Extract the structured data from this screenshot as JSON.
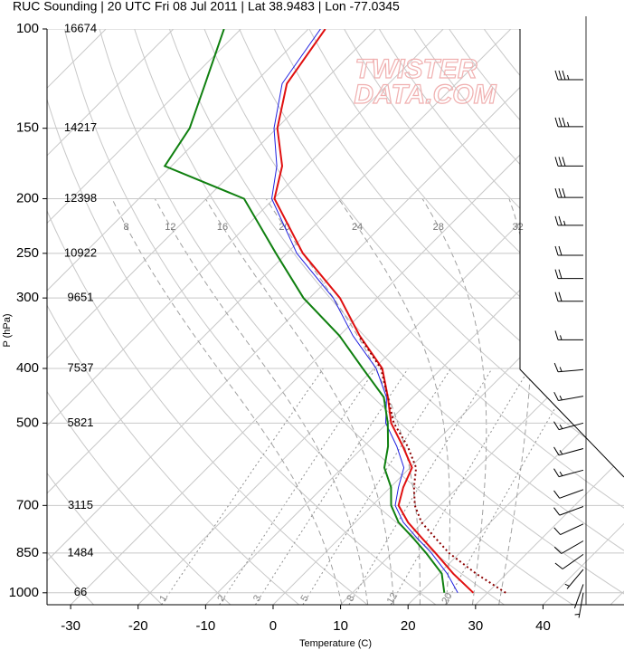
{
  "chart_data": {
    "type": "skewt",
    "title": "RUC Sounding | 20 UTC Fri 08 Jul 2011 | Lat 38.9483 | Lon -77.0345",
    "xlabel": "Temperature (C)",
    "ylabel": "P (hPa)",
    "watermark": [
      "TWISTER",
      "DATA.COM"
    ],
    "xlim": [
      -33.5,
      52
    ],
    "ylim": [
      1050,
      100
    ],
    "log_y": true,
    "xticks": [
      -30,
      -20,
      -10,
      0,
      10,
      20,
      30,
      40
    ],
    "yticks": [
      100,
      150,
      200,
      250,
      300,
      400,
      500,
      700,
      850,
      1000
    ],
    "grid": true,
    "pressure": [
      1000,
      925,
      850,
      800,
      750,
      700,
      650,
      600,
      550,
      500,
      450,
      400,
      350,
      300,
      250,
      200,
      175,
      150,
      125,
      100
    ],
    "series": [
      {
        "color": "#2020e0",
        "style": "solid",
        "values": [
          25.6,
          21.2,
          15.8,
          11.5,
          7.1,
          3.4,
          1.2,
          -0.9,
          -5.1,
          -10.2,
          -13.9,
          -19.7,
          -28.0,
          -36.5,
          -48.5,
          -60.3,
          -64.4,
          -70.4,
          -75.8,
          -78.2
        ]
      },
      {
        "color": "#e01010",
        "style": "solid",
        "values": [
          27.9,
          22.1,
          16.4,
          12.2,
          7.8,
          3.9,
          1.9,
          0.3,
          -4.2,
          -9.4,
          -13.7,
          -18.8,
          -27.0,
          -35.5,
          -47.6,
          -59.9,
          -63.6,
          -69.9,
          -75.1,
          -77.5
        ]
      },
      {
        "color": "#108010",
        "style": "solid",
        "values": [
          23.6,
          20.4,
          15.0,
          10.9,
          6.4,
          2.8,
          0.1,
          -3.8,
          -6.4,
          -9.9,
          -14.3,
          -21.7,
          -30.0,
          -40.9,
          -51.6,
          -64.4,
          -81.0,
          -82.9,
          -87.2,
          -92.5
        ]
      },
      {
        "color": "#8b0000",
        "style": "dotted",
        "values": [
          32.7,
          25.5,
          18.4,
          14.2,
          9.8,
          6.3,
          3.5,
          0.9,
          -3.5,
          -9.0,
          -13.7,
          -19.0,
          -27.1,
          null,
          null,
          null,
          null,
          null,
          null,
          null
        ]
      }
    ],
    "heights": {
      "pressure": [
        1000,
        850,
        700,
        500,
        400,
        300,
        250,
        200,
        150,
        100
      ],
      "labels": [
        66,
        1484,
        3115,
        5821,
        7537,
        9651,
        10922,
        12398,
        14217,
        16674
      ]
    },
    "mixing_ratio": [
      1,
      2,
      3,
      5,
      8,
      12,
      20
    ],
    "moist_adiabats": [
      8,
      12,
      16,
      20,
      24,
      28,
      32
    ],
    "wind": {
      "pressure": [
        1000,
        966,
        909,
        855,
        809,
        755,
        703,
        656,
        606,
        555,
        500,
        448,
        402,
        356,
        304,
        277,
        252,
        223,
        199,
        175,
        149,
        123
      ],
      "speed": [
        5,
        5,
        5,
        10,
        10,
        10,
        10,
        10,
        15,
        15,
        15,
        15,
        15,
        15,
        20,
        20,
        20,
        25,
        30,
        30,
        35,
        35
      ],
      "direction": [
        190,
        200,
        220,
        235,
        240,
        245,
        250,
        250,
        255,
        255,
        255,
        260,
        265,
        270,
        270,
        270,
        270,
        270,
        270,
        270,
        270,
        270
      ]
    }
  }
}
